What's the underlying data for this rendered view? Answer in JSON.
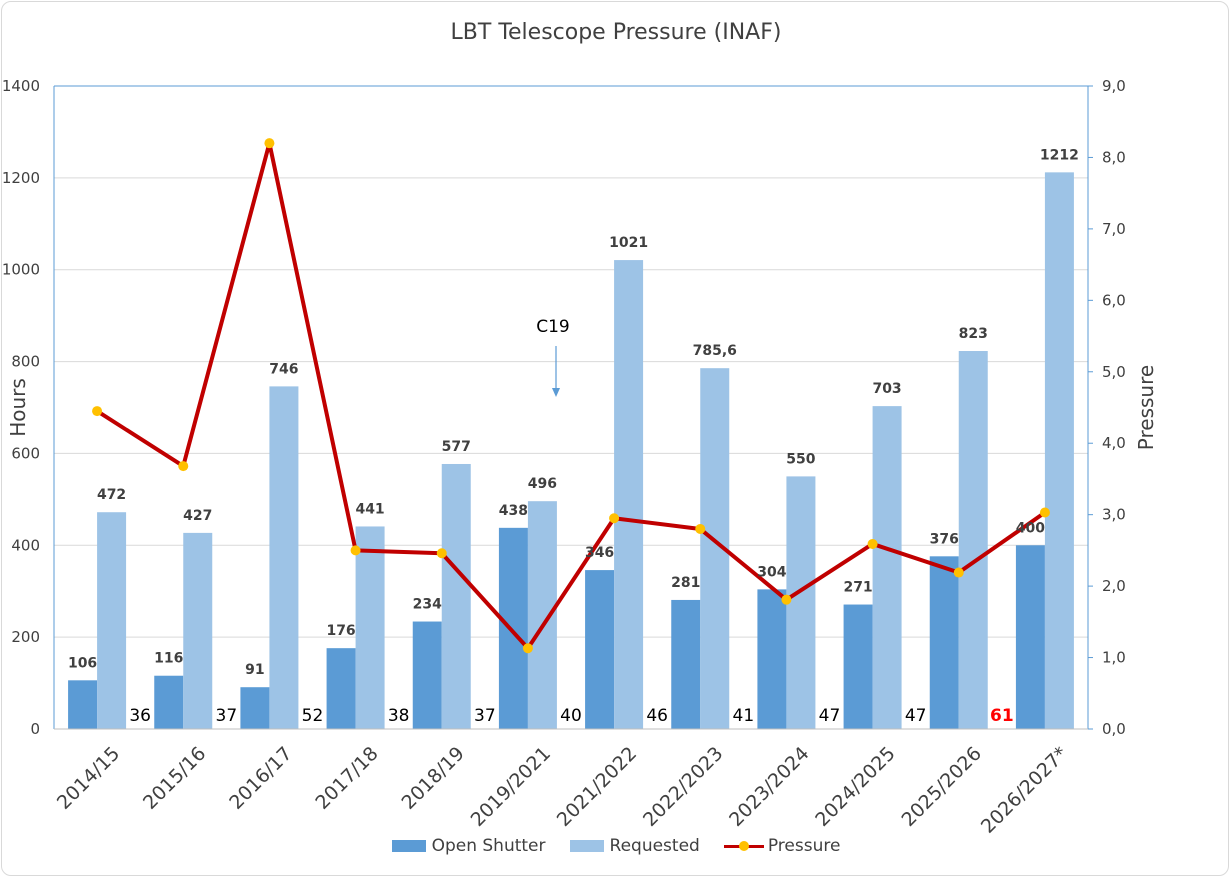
{
  "chart_data": {
    "type": "bar",
    "title": "LBT Telescope Pressure (INAF)",
    "categories": [
      "2014/15",
      "2015/16",
      "2016/17",
      "2017/18",
      "2018/19",
      "2019/2021",
      "2021/2022",
      "2022/2023",
      "2023/2024",
      "2024/2025",
      "2025/2026",
      "2026/2027*"
    ],
    "series": [
      {
        "name": "Open Shutter",
        "kind": "bar",
        "axis": "left",
        "color": "#5b9bd5",
        "values": [
          106,
          116,
          91,
          176,
          234,
          438,
          346,
          281,
          304,
          271,
          376,
          400
        ],
        "labels": [
          "106",
          "116",
          "91",
          "176",
          "234",
          "438",
          "346",
          "281",
          "304",
          "271",
          "376",
          "400"
        ]
      },
      {
        "name": "Requested",
        "kind": "bar",
        "axis": "left",
        "color": "#9dc3e6",
        "values": [
          472,
          427,
          746,
          441,
          577,
          496,
          1021,
          785.6,
          550,
          703,
          823,
          1212
        ],
        "labels": [
          "472",
          "427",
          "746",
          "441",
          "577",
          "496",
          "1021",
          "785,6",
          "550",
          "703",
          "823",
          "1212"
        ]
      },
      {
        "name": "Pressure",
        "kind": "line",
        "axis": "right",
        "color": "#c00000",
        "marker_color": "#ffc000",
        "values": [
          4.45,
          3.68,
          8.2,
          2.5,
          2.46,
          1.13,
          2.95,
          2.8,
          1.81,
          2.59,
          2.19,
          3.03
        ]
      }
    ],
    "bottom_labels": [
      "36",
      "37",
      "52",
      "38",
      "37",
      "40",
      "46",
      "41",
      "47",
      "47",
      "61"
    ],
    "bottom_labels_start": 1,
    "bottom_label_highlight_index": 11,
    "bottom_label_highlight_color": "#ff0000",
    "ylabel": "Hours",
    "y2label": "Pressure",
    "ylim": [
      0,
      1400
    ],
    "y2lim": [
      0,
      9
    ],
    "yticks": [
      "0",
      "200",
      "400",
      "600",
      "800",
      "1000",
      "1200",
      "1400"
    ],
    "y2ticks": [
      "0,0",
      "1,0",
      "2,0",
      "3,0",
      "4,0",
      "5,0",
      "6,0",
      "7,0",
      "8,0",
      "9,0"
    ],
    "grid": true,
    "annotation": {
      "text": "C19",
      "between_index": 5,
      "arrow": "down"
    },
    "legend_position": "bottom"
  }
}
